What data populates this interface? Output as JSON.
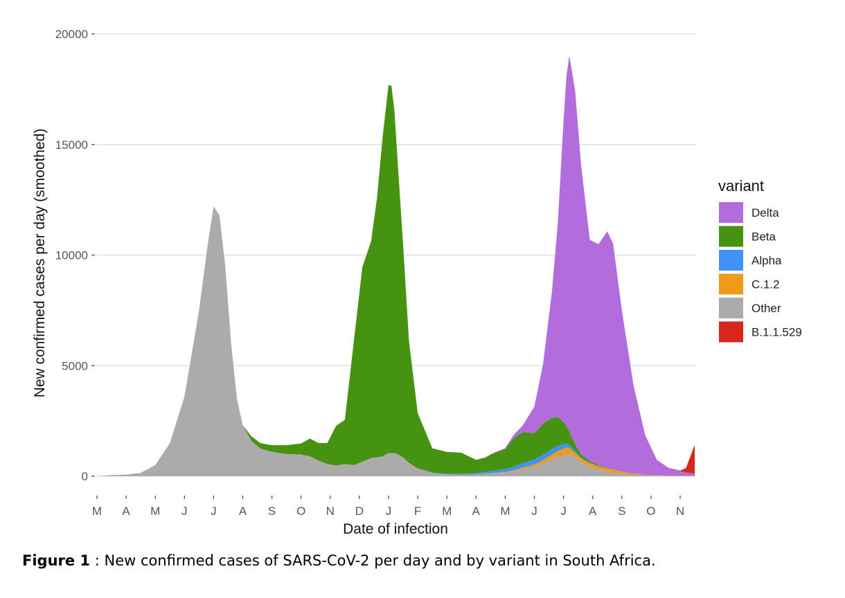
{
  "chart_data": {
    "type": "area",
    "stacked": true,
    "ylabel": "New confirmed cases per day (smoothed)",
    "xlabel": "Date of infection",
    "ylim": [
      0,
      20000
    ],
    "y_ticks": [
      0,
      5000,
      10000,
      15000,
      20000
    ],
    "grid": true,
    "x_range": [
      0,
      20.5
    ],
    "x_ticks": [
      {
        "label": "M",
        "x": 0
      },
      {
        "label": "A",
        "x": 1
      },
      {
        "label": "M",
        "x": 2
      },
      {
        "label": "J",
        "x": 3
      },
      {
        "label": "J",
        "x": 4
      },
      {
        "label": "A",
        "x": 5
      },
      {
        "label": "S",
        "x": 6
      },
      {
        "label": "O",
        "x": 7
      },
      {
        "label": "N",
        "x": 8
      },
      {
        "label": "D",
        "x": 9
      },
      {
        "label": "J",
        "x": 10
      },
      {
        "label": "F",
        "x": 11
      },
      {
        "label": "M",
        "x": 12
      },
      {
        "label": "A",
        "x": 13
      },
      {
        "label": "M",
        "x": 14
      },
      {
        "label": "J",
        "x": 15
      },
      {
        "label": "J",
        "x": 16
      },
      {
        "label": "A",
        "x": 17
      },
      {
        "label": "S",
        "x": 18
      },
      {
        "label": "O",
        "x": 19
      },
      {
        "label": "N",
        "x": 20
      }
    ],
    "legend_title": "variant",
    "legend_position": "right",
    "x": [
      0,
      0.5,
      1,
      1.5,
      2,
      2.5,
      3,
      3.5,
      3.8,
      4,
      4.2,
      4.4,
      4.6,
      4.8,
      5,
      5.3,
      5.6,
      6,
      6.5,
      7,
      7.3,
      7.6,
      7.9,
      8.2,
      8.5,
      8.8,
      9.1,
      9.4,
      9.6,
      9.8,
      10,
      10.1,
      10.2,
      10.3,
      10.5,
      10.7,
      11,
      11.5,
      12,
      12.5,
      13,
      13.3,
      13.6,
      14,
      14.3,
      14.6,
      15,
      15.3,
      15.6,
      15.8,
      16,
      16.1,
      16.2,
      16.4,
      16.6,
      16.9,
      17.2,
      17.5,
      17.7,
      18,
      18.4,
      18.8,
      19.2,
      19.6,
      20,
      20.2,
      20.5
    ],
    "series": [
      {
        "name": "Other",
        "color": "#ababab",
        "values": [
          0,
          50,
          70,
          150,
          500,
          1500,
          3600,
          7500,
          10500,
          12200,
          11800,
          9500,
          6000,
          3500,
          2300,
          1600,
          1250,
          1100,
          1000,
          980,
          900,
          700,
          550,
          480,
          550,
          500,
          650,
          820,
          850,
          900,
          1050,
          1050,
          1050,
          1000,
          850,
          600,
          350,
          150,
          80,
          70,
          80,
          100,
          130,
          170,
          230,
          320,
          420,
          580,
          780,
          880,
          950,
          1000,
          1000,
          850,
          650,
          450,
          300,
          200,
          150,
          100,
          60,
          30,
          20,
          15,
          10,
          10,
          10
        ]
      },
      {
        "name": "C.1.2",
        "color": "#ee9a1a",
        "values": [
          0,
          0,
          0,
          0,
          0,
          0,
          0,
          0,
          0,
          0,
          0,
          0,
          0,
          0,
          0,
          0,
          0,
          0,
          0,
          0,
          0,
          0,
          0,
          0,
          0,
          0,
          0,
          0,
          0,
          0,
          0,
          0,
          0,
          0,
          0,
          0,
          0,
          0,
          0,
          0,
          0,
          5,
          10,
          20,
          40,
          70,
          110,
          150,
          200,
          250,
          300,
          300,
          270,
          200,
          150,
          140,
          140,
          140,
          150,
          100,
          60,
          30,
          20,
          15,
          10,
          5,
          5
        ]
      },
      {
        "name": "Alpha",
        "color": "#4193f3",
        "values": [
          0,
          0,
          0,
          0,
          0,
          0,
          0,
          0,
          0,
          0,
          0,
          0,
          0,
          0,
          0,
          0,
          0,
          0,
          0,
          0,
          0,
          0,
          0,
          0,
          0,
          0,
          0,
          0,
          0,
          0,
          0,
          0,
          0,
          0,
          0,
          0,
          0,
          10,
          20,
          40,
          60,
          80,
          110,
          130,
          160,
          200,
          220,
          250,
          250,
          250,
          200,
          180,
          150,
          80,
          40,
          20,
          10,
          10,
          5,
          5,
          0,
          0,
          0,
          0,
          0,
          0,
          0
        ]
      },
      {
        "name": "Beta",
        "color": "#469211",
        "values": [
          0,
          0,
          0,
          0,
          0,
          0,
          0,
          0,
          0,
          0,
          0,
          0,
          0,
          0,
          0,
          200,
          250,
          300,
          400,
          500,
          800,
          800,
          950,
          1800,
          2000,
          5500,
          8800,
          9800,
          11700,
          14500,
          16650,
          16600,
          15500,
          13500,
          9600,
          5500,
          2500,
          1100,
          1000,
          950,
          600,
          650,
          800,
          900,
          1300,
          1400,
          1200,
          1400,
          1400,
          1300,
          1000,
          800,
          600,
          300,
          150,
          80,
          40,
          20,
          10,
          5,
          0,
          0,
          0,
          0,
          0,
          0,
          0
        ]
      },
      {
        "name": "Delta",
        "color": "#b36cdc",
        "values": [
          0,
          0,
          0,
          0,
          0,
          0,
          0,
          0,
          0,
          0,
          0,
          0,
          0,
          0,
          0,
          0,
          0,
          0,
          0,
          0,
          0,
          0,
          0,
          0,
          0,
          0,
          0,
          0,
          0,
          0,
          0,
          0,
          0,
          0,
          0,
          0,
          0,
          0,
          0,
          0,
          0,
          0,
          0,
          50,
          150,
          300,
          1200,
          2700,
          5700,
          8700,
          13600,
          15800,
          17000,
          16000,
          13100,
          10000,
          10000,
          10700,
          10200,
          7300,
          4000,
          1800,
          700,
          350,
          200,
          150,
          100
        ]
      },
      {
        "name": "B.1.1.529",
        "color": "#d9261a",
        "values": [
          0,
          0,
          0,
          0,
          0,
          0,
          0,
          0,
          0,
          0,
          0,
          0,
          0,
          0,
          0,
          0,
          0,
          0,
          0,
          0,
          0,
          0,
          0,
          0,
          0,
          0,
          0,
          0,
          0,
          0,
          0,
          0,
          0,
          0,
          0,
          0,
          0,
          0,
          0,
          0,
          0,
          0,
          0,
          0,
          0,
          0,
          0,
          0,
          0,
          0,
          0,
          0,
          0,
          0,
          0,
          0,
          0,
          0,
          0,
          0,
          0,
          0,
          0,
          0,
          30,
          200,
          1300
        ]
      }
    ],
    "legend_order": [
      "Delta",
      "Beta",
      "Alpha",
      "C.1.2",
      "Other",
      "B.1.1.529"
    ]
  },
  "caption": {
    "bold": "Figure 1",
    "text": " : New confirmed cases of SARS-CoV-2 per day and by variant in South Africa."
  }
}
